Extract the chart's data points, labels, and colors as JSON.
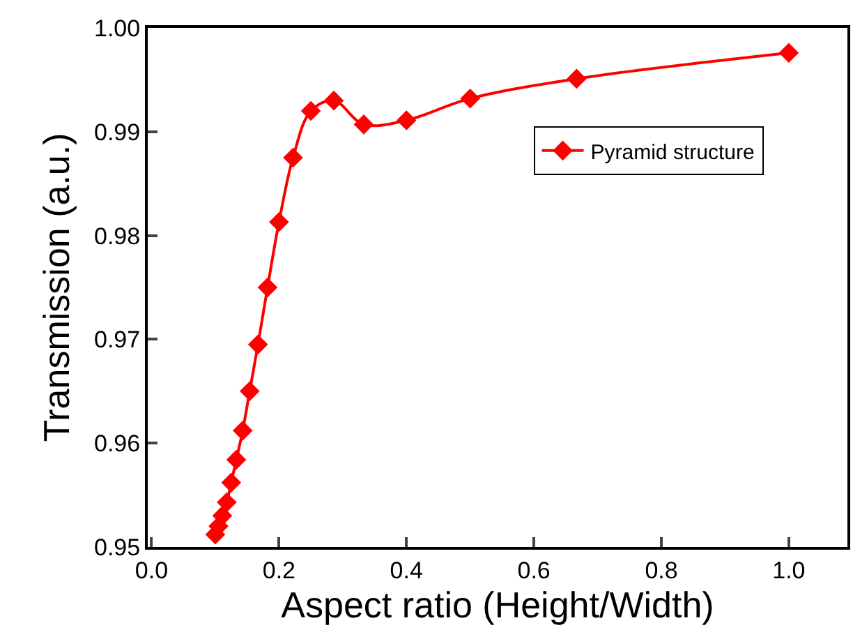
{
  "chart_data": {
    "type": "line",
    "xlabel": "Aspect ratio (Height/Width)",
    "ylabel": "Transmission (a.u.)",
    "x": [
      0.1,
      0.105,
      0.111,
      0.118,
      0.125,
      0.133,
      0.143,
      0.154,
      0.167,
      0.182,
      0.2,
      0.222,
      0.25,
      0.286,
      0.333,
      0.4,
      0.5,
      0.667,
      1.0
    ],
    "series": [
      {
        "name": "Pyramid structure",
        "color": "#ff0000",
        "values": [
          0.9512,
          0.952,
          0.953,
          0.9543,
          0.9562,
          0.9584,
          0.9612,
          0.965,
          0.9695,
          0.975,
          0.9813,
          0.9875,
          0.992,
          0.993,
          0.9907,
          0.9911,
          0.9932,
          0.9951,
          0.9976
        ]
      }
    ],
    "xlim": [
      -0.006,
      1.092
    ],
    "xticks": [
      {
        "value": 0,
        "label": "0.0"
      },
      0.2,
      0.4,
      0.6,
      0.8,
      {
        "value": 1,
        "label": "1.0"
      }
    ],
    "ylim": [
      0.95,
      1.0
    ],
    "yticks": [
      0.95,
      {
        "value": 0.96,
        "label": "0.96"
      },
      0.97,
      0.98,
      0.99,
      {
        "value": 1.0,
        "label": "1.00"
      }
    ],
    "grid": false,
    "legend": "top right",
    "marker": "diamond",
    "line_style": "solid"
  }
}
